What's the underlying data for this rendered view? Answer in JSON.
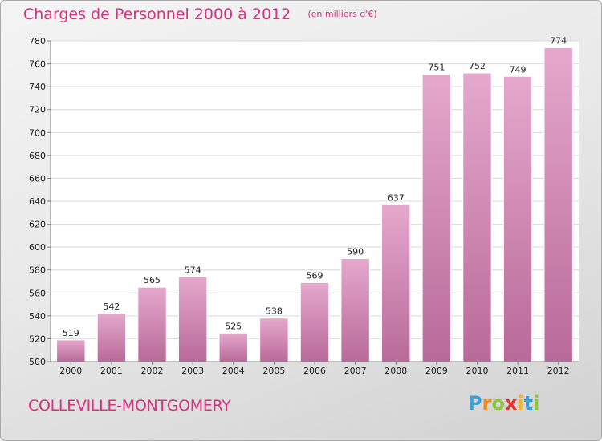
{
  "chart_data": {
    "type": "bar",
    "title": "Charges de Personnel 2000 à 2012",
    "subtitle": "(en milliers d'€)",
    "categories": [
      "2000",
      "2001",
      "2002",
      "2003",
      "2004",
      "2005",
      "2006",
      "2007",
      "2008",
      "2009",
      "2010",
      "2011",
      "2012"
    ],
    "values": [
      519,
      542,
      565,
      574,
      525,
      538,
      569,
      590,
      637,
      751,
      752,
      749,
      774
    ],
    "ylim": [
      500,
      780
    ],
    "yticks": [
      500,
      520,
      540,
      560,
      580,
      600,
      620,
      640,
      660,
      680,
      700,
      720,
      740,
      760,
      780
    ],
    "xlabel": "",
    "ylabel": "",
    "grid": true,
    "bar_color": "#c977a8"
  },
  "footer": {
    "town": "COLLEVILLE-MONTGOMERY"
  },
  "logo": {
    "letters": [
      "P",
      "r",
      "o",
      "x",
      "i",
      "t",
      "i"
    ],
    "colors": [
      "#3aa1d8",
      "#f08a1c",
      "#8dc63f",
      "#e8322e",
      "#f6b61c",
      "#3aa1d8",
      "#8dc63f"
    ]
  }
}
